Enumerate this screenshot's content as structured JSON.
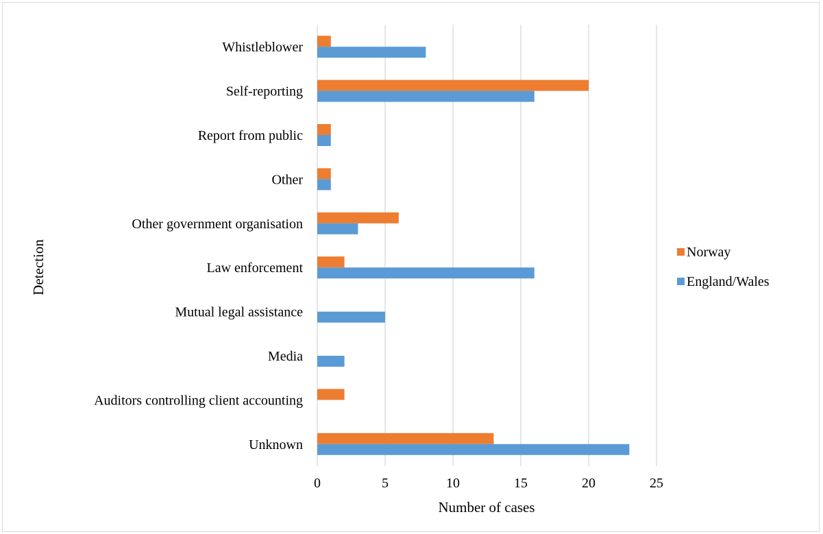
{
  "chart_data": {
    "type": "bar",
    "orientation": "horizontal",
    "title": "",
    "xlabel": "Number of cases",
    "ylabel": "Detection",
    "xlim": [
      0,
      25
    ],
    "xticks": [
      "0",
      "5",
      "10",
      "15",
      "20",
      "25"
    ],
    "grid": "vertical",
    "legend_position": "right",
    "categories": [
      "Whistleblower",
      "Self-reporting",
      "Report from public",
      "Other",
      "Other government organisation",
      "Law enforcement",
      "Mutual legal assistance",
      "Media",
      "Auditors controlling client accounting",
      "Unknown"
    ],
    "series": [
      {
        "name": "Norway",
        "color": "#ed7d31",
        "values": [
          1,
          20,
          1,
          1,
          6,
          2,
          0,
          0,
          2,
          13
        ]
      },
      {
        "name": "England/Wales",
        "color": "#5b9bd5",
        "values": [
          8,
          16,
          1,
          1,
          3,
          16,
          5,
          2,
          0,
          23
        ]
      }
    ]
  }
}
